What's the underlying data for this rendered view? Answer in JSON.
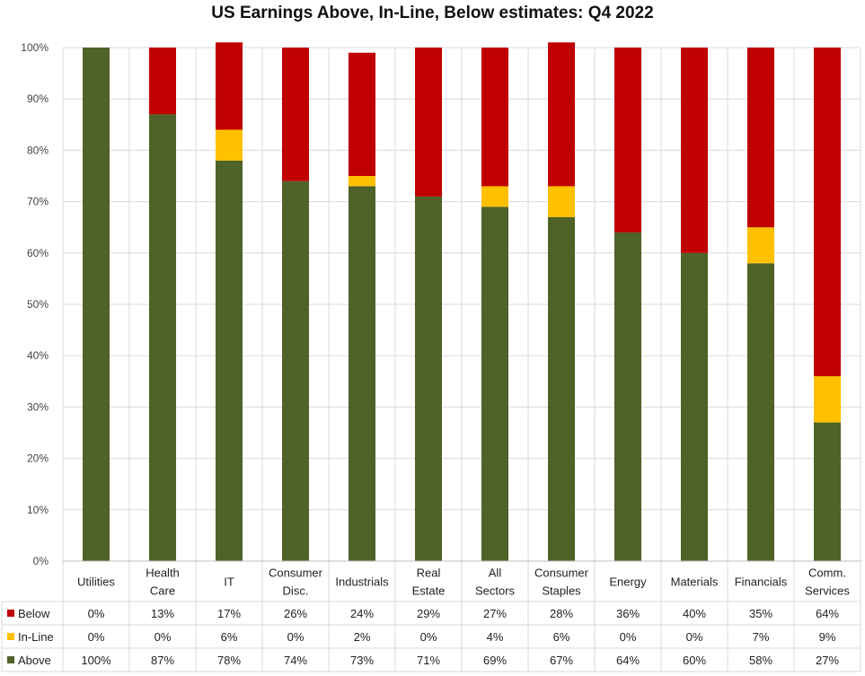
{
  "chart_data": {
    "type": "bar",
    "stacked": true,
    "title": "US Earnings Above, In-Line, Below estimates: Q4 2022",
    "ylim": [
      0,
      100
    ],
    "yticks": [
      "0%",
      "10%",
      "20%",
      "30%",
      "40%",
      "50%",
      "60%",
      "70%",
      "80%",
      "90%",
      "100%"
    ],
    "categories": [
      [
        "Utilities"
      ],
      [
        "Health",
        "Care"
      ],
      [
        "IT"
      ],
      [
        "Consumer",
        "Disc."
      ],
      [
        "Industrials"
      ],
      [
        "Real",
        "Estate"
      ],
      [
        "All",
        "Sectors"
      ],
      [
        "Consumer",
        "Staples"
      ],
      [
        "Energy"
      ],
      [
        "Materials"
      ],
      [
        "Financials"
      ],
      [
        "Comm.",
        "Services"
      ]
    ],
    "series": [
      {
        "name": "Above",
        "color": "#4f6228",
        "values": [
          100,
          87,
          78,
          74,
          73,
          71,
          69,
          67,
          64,
          60,
          58,
          27
        ],
        "labels": [
          "100%",
          "87%",
          "78%",
          "74%",
          "73%",
          "71%",
          "69%",
          "67%",
          "64%",
          "60%",
          "58%",
          "27%"
        ]
      },
      {
        "name": "In-Line",
        "color": "#ffc000",
        "values": [
          0,
          0,
          6,
          0,
          2,
          0,
          4,
          6,
          0,
          0,
          7,
          9
        ],
        "labels": [
          "0%",
          "0%",
          "6%",
          "0%",
          "2%",
          "0%",
          "4%",
          "6%",
          "0%",
          "0%",
          "7%",
          "9%"
        ]
      },
      {
        "name": "Below",
        "color": "#c00000",
        "values": [
          0,
          13,
          17,
          26,
          24,
          29,
          27,
          28,
          36,
          40,
          35,
          64
        ],
        "labels": [
          "0%",
          "13%",
          "17%",
          "26%",
          "24%",
          "29%",
          "27%",
          "28%",
          "36%",
          "40%",
          "35%",
          "64%"
        ]
      }
    ],
    "table_rows": [
      "Below",
      "In-Line",
      "Above"
    ],
    "grid": true,
    "legend": "data-table"
  }
}
